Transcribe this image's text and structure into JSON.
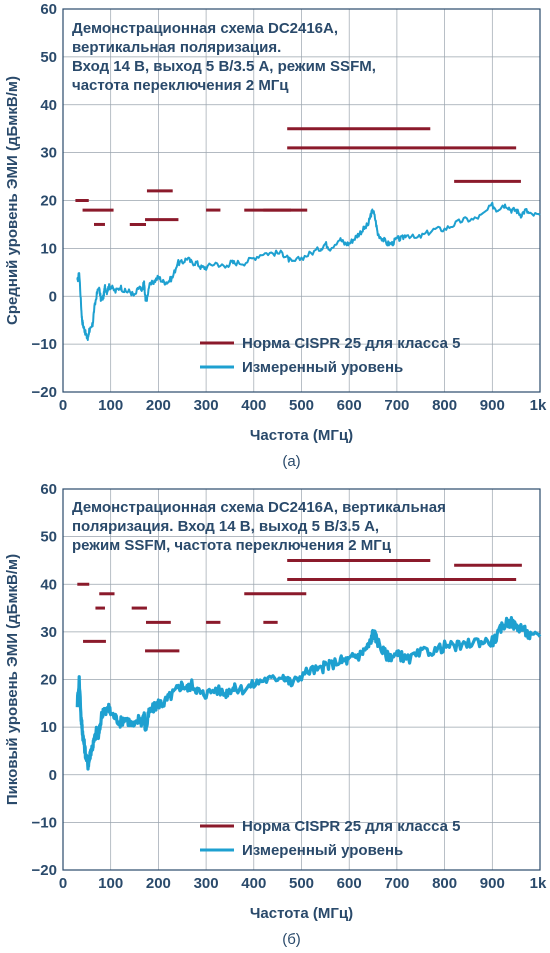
{
  "colors": {
    "limit": "#8b1a2b",
    "measured": "#1ea0d0",
    "axis": "#2a4a6b",
    "grid": "#9aa4ae"
  },
  "chart_data": [
    {
      "type": "line",
      "caption": "(a)",
      "notes": [
        "Демонстрационная схема DC2416A,",
        "вертикальная поляризация.",
        "Вход 14 В, выход 5 В/3.5 А, режим SSFM,",
        "частота переключения 2 МГц"
      ],
      "xlabel": "Частота (МГц)",
      "ylabel": "Средний уровень ЭМИ (дБмкВ/м)",
      "xlim": [
        0,
        1000
      ],
      "ylim": [
        -20,
        60
      ],
      "x_ticks": [
        {
          "v": 0,
          "label": "0"
        },
        {
          "v": 100,
          "label": "100"
        },
        {
          "v": 200,
          "label": "200"
        },
        {
          "v": 300,
          "label": "300"
        },
        {
          "v": 400,
          "label": "400"
        },
        {
          "v": 500,
          "label": "500"
        },
        {
          "v": 600,
          "label": "600"
        },
        {
          "v": 700,
          "label": "700"
        },
        {
          "v": 800,
          "label": "800"
        },
        {
          "v": 900,
          "label": "900"
        },
        {
          "v": 1000,
          "label": "1k"
        }
      ],
      "y_ticks": [
        {
          "v": -20,
          "label": "−20"
        },
        {
          "v": -10,
          "label": "−10"
        },
        {
          "v": 0,
          "label": "0"
        },
        {
          "v": 10,
          "label": "10"
        },
        {
          "v": 20,
          "label": "20"
        },
        {
          "v": 30,
          "label": "30"
        },
        {
          "v": 40,
          "label": "40"
        },
        {
          "v": 50,
          "label": "50"
        },
        {
          "v": 60,
          "label": "60"
        }
      ],
      "grid": true,
      "legend": {
        "position": "bottom-right",
        "entries": [
          {
            "name": "Норма CISPR 25 для класса 5",
            "key": "limit"
          },
          {
            "name": "Измеренный уровень",
            "key": "measured"
          }
        ]
      },
      "limits": [
        {
          "x1": 26,
          "x2": 54,
          "y": 20
        },
        {
          "x1": 41,
          "x2": 106,
          "y": 18
        },
        {
          "x1": 65,
          "x2": 88,
          "y": 15
        },
        {
          "x1": 140,
          "x2": 174,
          "y": 15
        },
        {
          "x1": 172,
          "x2": 242,
          "y": 16
        },
        {
          "x1": 176,
          "x2": 230,
          "y": 22
        },
        {
          "x1": 300,
          "x2": 330,
          "y": 18
        },
        {
          "x1": 380,
          "x2": 478,
          "y": 18
        },
        {
          "x1": 420,
          "x2": 512,
          "y": 18
        },
        {
          "x1": 470,
          "x2": 770,
          "y": 35
        },
        {
          "x1": 470,
          "x2": 950,
          "y": 31
        },
        {
          "x1": 820,
          "x2": 960,
          "y": 24
        }
      ],
      "measured": {
        "x": [
          30,
          34,
          38,
          40,
          42,
          45,
          48,
          52,
          55,
          58,
          62,
          65,
          70,
          75,
          80,
          85,
          88,
          92,
          96,
          100,
          110,
          120,
          130,
          140,
          150,
          160,
          165,
          170,
          172,
          175,
          180,
          190,
          200,
          210,
          220,
          230,
          240,
          250,
          260,
          270,
          280,
          290,
          300,
          320,
          340,
          350,
          360,
          380,
          400,
          420,
          440,
          460,
          470,
          480,
          500,
          520,
          540,
          550,
          560,
          580,
          590,
          600,
          610,
          620,
          630,
          640,
          645,
          650,
          655,
          660,
          670,
          680,
          690,
          700,
          710,
          720,
          740,
          760,
          780,
          800,
          820,
          840,
          860,
          880,
          900,
          910,
          920,
          930,
          940,
          950,
          960,
          970,
          980,
          1000
        ],
        "y": [
          3,
          5,
          -2,
          -5,
          -6,
          -7,
          -8,
          -9,
          -7,
          -7,
          -6,
          -3,
          0,
          2,
          -1,
          0,
          2,
          1,
          2,
          2,
          1,
          2,
          1,
          1,
          0,
          2,
          1,
          3,
          0,
          -1,
          2,
          3,
          4,
          3,
          3,
          4,
          7,
          7,
          8,
          7,
          7,
          6,
          6,
          7,
          6,
          7,
          7,
          7,
          8,
          9,
          9,
          9,
          8,
          7,
          8,
          9,
          10,
          11,
          10,
          12,
          11,
          11,
          12,
          13,
          14,
          15,
          17,
          18,
          16,
          13,
          12,
          11,
          11,
          12,
          12,
          13,
          12,
          13,
          14,
          14,
          15,
          16,
          16,
          17,
          19,
          18,
          19,
          19,
          18,
          18,
          17,
          18,
          17,
          17
        ]
      }
    },
    {
      "type": "line",
      "caption": "(б)",
      "notes": [
        "Демонстрационная схема DC2416A, вертикальная",
        "поляризация. Вход 14 В, выход 5 В/3.5 А,",
        "режим SSFM, частота переключения 2 МГц"
      ],
      "xlabel": "Частота (МГц)",
      "ylabel": "Пиковый уровень ЭМИ (дБмкВ/м)",
      "xlim": [
        0,
        1000
      ],
      "ylim": [
        -20,
        60
      ],
      "x_ticks": [
        {
          "v": 0,
          "label": "0"
        },
        {
          "v": 100,
          "label": "100"
        },
        {
          "v": 200,
          "label": "200"
        },
        {
          "v": 300,
          "label": "300"
        },
        {
          "v": 400,
          "label": "400"
        },
        {
          "v": 500,
          "label": "500"
        },
        {
          "v": 600,
          "label": "600"
        },
        {
          "v": 700,
          "label": "700"
        },
        {
          "v": 800,
          "label": "800"
        },
        {
          "v": 900,
          "label": "900"
        },
        {
          "v": 1000,
          "label": "1k"
        }
      ],
      "y_ticks": [
        {
          "v": -20,
          "label": "−20"
        },
        {
          "v": -10,
          "label": "−10"
        },
        {
          "v": 0,
          "label": "0"
        },
        {
          "v": 10,
          "label": "10"
        },
        {
          "v": 20,
          "label": "20"
        },
        {
          "v": 30,
          "label": "30"
        },
        {
          "v": 40,
          "label": "40"
        },
        {
          "v": 50,
          "label": "50"
        },
        {
          "v": 60,
          "label": "60"
        }
      ],
      "grid": true,
      "legend": {
        "position": "bottom-right",
        "entries": [
          {
            "name": "Норма CISPR 25 для класса 5",
            "key": "limit"
          },
          {
            "name": "Измеренный уровень",
            "key": "measured"
          }
        ]
      },
      "limits": [
        {
          "x1": 30,
          "x2": 55,
          "y": 40
        },
        {
          "x1": 42,
          "x2": 90,
          "y": 28
        },
        {
          "x1": 68,
          "x2": 88,
          "y": 35
        },
        {
          "x1": 76,
          "x2": 108,
          "y": 38
        },
        {
          "x1": 144,
          "x2": 176,
          "y": 35
        },
        {
          "x1": 174,
          "x2": 226,
          "y": 32
        },
        {
          "x1": 172,
          "x2": 244,
          "y": 26
        },
        {
          "x1": 300,
          "x2": 330,
          "y": 32
        },
        {
          "x1": 380,
          "x2": 510,
          "y": 38
        },
        {
          "x1": 420,
          "x2": 450,
          "y": 32
        },
        {
          "x1": 470,
          "x2": 770,
          "y": 45
        },
        {
          "x1": 470,
          "x2": 950,
          "y": 41
        },
        {
          "x1": 820,
          "x2": 962,
          "y": 44
        }
      ],
      "measured": {
        "x": [
          30,
          34,
          38,
          40,
          42,
          45,
          48,
          52,
          55,
          58,
          62,
          65,
          70,
          75,
          80,
          85,
          90,
          95,
          100,
          110,
          120,
          130,
          140,
          150,
          160,
          165,
          170,
          172,
          175,
          180,
          190,
          200,
          210,
          220,
          230,
          240,
          250,
          260,
          270,
          280,
          290,
          300,
          320,
          340,
          350,
          360,
          380,
          400,
          420,
          440,
          460,
          470,
          480,
          500,
          520,
          540,
          550,
          560,
          580,
          590,
          600,
          610,
          620,
          630,
          640,
          645,
          650,
          655,
          660,
          670,
          680,
          690,
          700,
          710,
          720,
          740,
          760,
          780,
          800,
          820,
          840,
          860,
          880,
          900,
          910,
          920,
          930,
          940,
          950,
          960,
          970,
          980,
          1000
        ],
        "y": [
          15,
          20,
          12,
          10,
          8,
          6,
          4,
          2,
          3,
          5,
          6,
          7,
          9,
          8,
          12,
          14,
          13,
          14,
          13,
          12,
          11,
          12,
          11,
          10,
          12,
          11,
          13,
          10,
          10,
          13,
          14,
          15,
          15,
          16,
          17,
          18,
          19,
          18,
          19,
          18,
          17,
          17,
          18,
          17,
          18,
          18,
          18,
          19,
          20,
          20,
          21,
          20,
          19,
          21,
          22,
          22,
          23,
          23,
          24,
          24,
          24,
          25,
          25,
          26,
          27,
          28,
          30,
          29,
          28,
          26,
          25,
          25,
          25,
          25,
          24,
          25,
          26,
          26,
          27,
          27,
          27,
          28,
          28,
          28,
          29,
          31,
          32,
          32,
          31,
          31,
          30,
          29,
          29
        ]
      }
    }
  ]
}
